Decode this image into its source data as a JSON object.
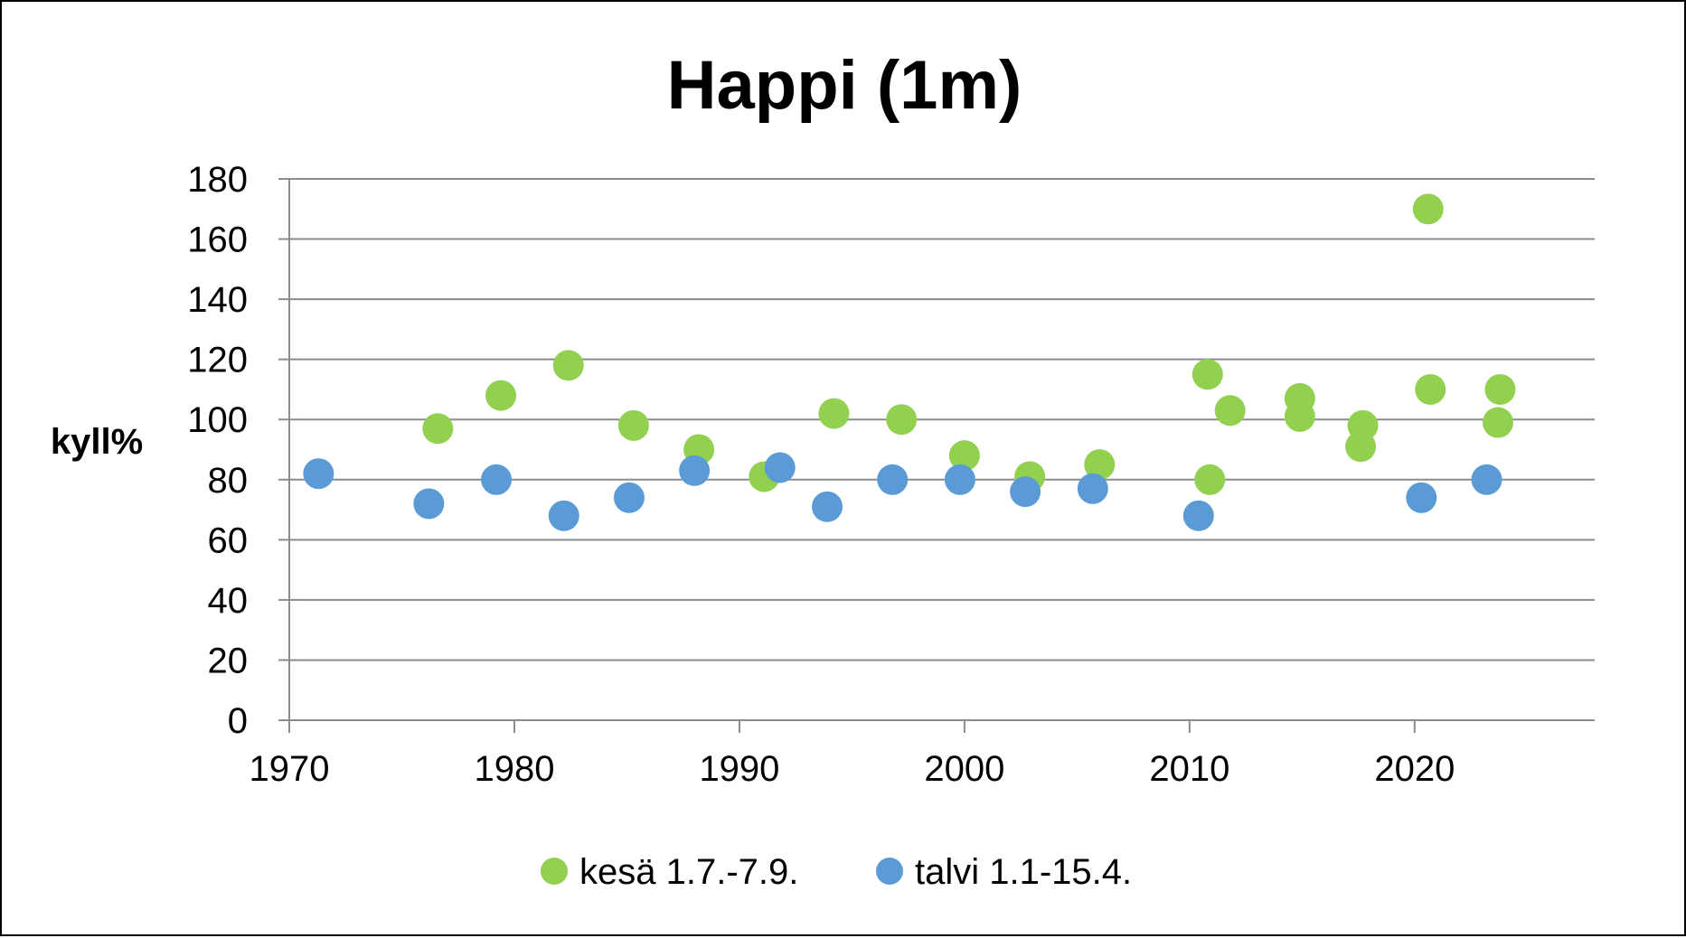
{
  "chart_data": {
    "type": "scatter",
    "title": "Happi (1m)",
    "xlabel": "",
    "ylabel": "kyll%",
    "xlim": [
      1970,
      2028
    ],
    "ylim": [
      0,
      180
    ],
    "x_ticks": [
      1970,
      1980,
      1990,
      2000,
      2010,
      2020
    ],
    "y_ticks": [
      0,
      20,
      40,
      60,
      80,
      100,
      120,
      140,
      160,
      180
    ],
    "grid": "horizontal",
    "legend_position": "bottom",
    "series": [
      {
        "name": "kesä 1.7.-7.9.",
        "color": "#92d050",
        "points": [
          {
            "x": 1976.6,
            "y": 97
          },
          {
            "x": 1979.4,
            "y": 108
          },
          {
            "x": 1982.4,
            "y": 118
          },
          {
            "x": 1985.3,
            "y": 98
          },
          {
            "x": 1988.2,
            "y": 90
          },
          {
            "x": 1991.1,
            "y": 81
          },
          {
            "x": 1994.2,
            "y": 102
          },
          {
            "x": 1997.2,
            "y": 100
          },
          {
            "x": 2000.0,
            "y": 88
          },
          {
            "x": 2002.9,
            "y": 81
          },
          {
            "x": 2006.0,
            "y": 85
          },
          {
            "x": 2010.8,
            "y": 115
          },
          {
            "x": 2010.9,
            "y": 80
          },
          {
            "x": 2011.8,
            "y": 103
          },
          {
            "x": 2014.9,
            "y": 107
          },
          {
            "x": 2014.9,
            "y": 101
          },
          {
            "x": 2017.7,
            "y": 98
          },
          {
            "x": 2017.6,
            "y": 91
          },
          {
            "x": 2020.6,
            "y": 170
          },
          {
            "x": 2020.7,
            "y": 110
          },
          {
            "x": 2023.8,
            "y": 110
          },
          {
            "x": 2023.7,
            "y": 99
          }
        ]
      },
      {
        "name": "talvi 1.1-15.4.",
        "color": "#5b9bd5",
        "points": [
          {
            "x": 1971.3,
            "y": 82
          },
          {
            "x": 1976.2,
            "y": 72
          },
          {
            "x": 1979.2,
            "y": 80
          },
          {
            "x": 1982.2,
            "y": 68
          },
          {
            "x": 1985.1,
            "y": 74
          },
          {
            "x": 1988.0,
            "y": 83
          },
          {
            "x": 1991.8,
            "y": 84
          },
          {
            "x": 1993.9,
            "y": 71
          },
          {
            "x": 1996.8,
            "y": 80
          },
          {
            "x": 1999.8,
            "y": 80
          },
          {
            "x": 2002.7,
            "y": 76
          },
          {
            "x": 2005.7,
            "y": 77
          },
          {
            "x": 2010.4,
            "y": 68
          },
          {
            "x": 2020.3,
            "y": 74
          },
          {
            "x": 2023.2,
            "y": 80
          }
        ]
      }
    ]
  }
}
